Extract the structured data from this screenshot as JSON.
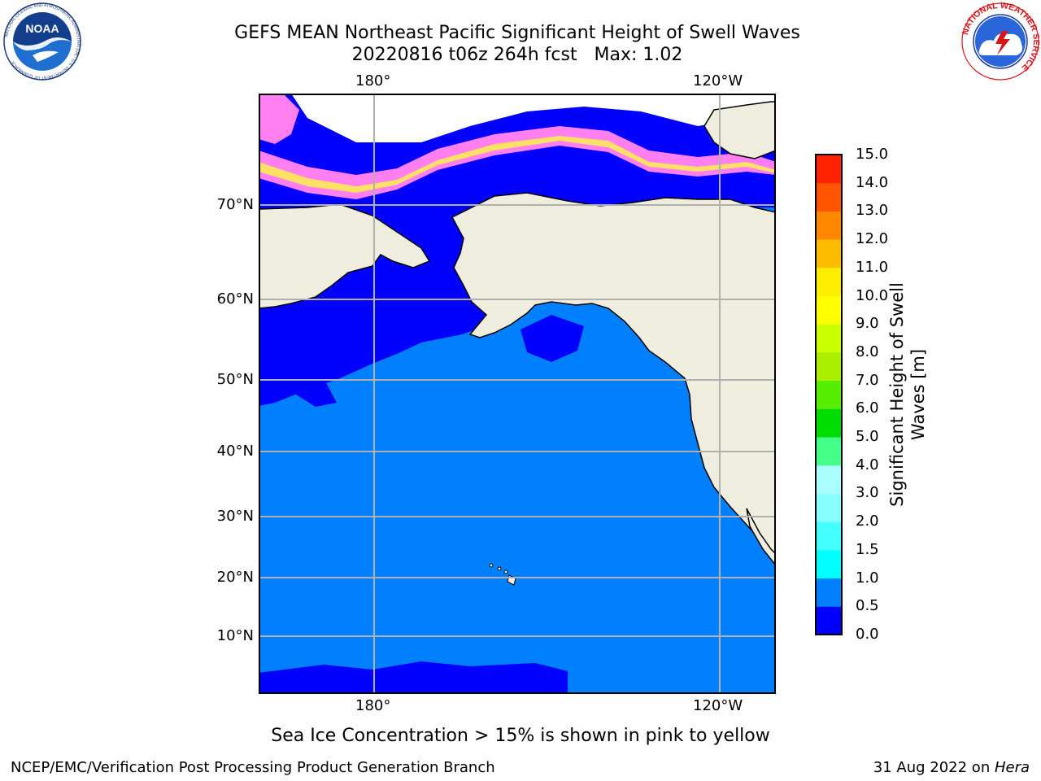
{
  "header": {
    "title_line1": "GEFS MEAN Northeast Pacific Significant Height of Swell Waves",
    "title_line2": "20220816 t06z 264h fcst   Max: 1.02"
  },
  "logos": {
    "noaa_text": "NOAA",
    "noaa_ring_text": "NATIONAL OCEANIC AND ATMOSPHERIC ADMINISTRATION · U.S. DEPARTMENT OF COMMERCE",
    "nws_ring_text": "NATIONAL WEATHER SERVICE"
  },
  "map": {
    "lon_labels": [
      "180°",
      "120°W"
    ],
    "lat_labels": [
      "70°N",
      "60°N",
      "50°N",
      "40°N",
      "30°N",
      "20°N",
      "10°N"
    ],
    "colors": {
      "land": "#efedde",
      "ocean_0_0_5": "#0000ff",
      "ocean_0_5_1": "#007fff",
      "ice_pink": "#ff7ff0",
      "ice_yellow": "#ffe066",
      "gridline": "#b0b0b0"
    }
  },
  "colorbar": {
    "label": "Significant Height of Swell Waves [m]",
    "ticks": [
      "0.0",
      "0.5",
      "1.0",
      "1.5",
      "2.0",
      "3.0",
      "4.0",
      "5.0",
      "6.0",
      "7.0",
      "8.0",
      "9.0",
      "10.0",
      "11.0",
      "12.0",
      "13.0",
      "14.0",
      "15.0"
    ],
    "colors": [
      "#0000ff",
      "#007fff",
      "#00ffff",
      "#44ffff",
      "#88ffff",
      "#aaffff",
      "#44ff88",
      "#00dd00",
      "#55ee00",
      "#aaee00",
      "#ccff00",
      "#ffff00",
      "#ffee00",
      "#ffbb00",
      "#ff8800",
      "#ff5500",
      "#ff2200",
      "#ff0000"
    ]
  },
  "note": "Sea Ice Concentration > 15% is shown in pink to yellow",
  "footer": {
    "left": "NCEP/EMC/Verification Post Processing Product Generation Branch",
    "date": "31 Aug 2022 on ",
    "host": "Hera"
  }
}
